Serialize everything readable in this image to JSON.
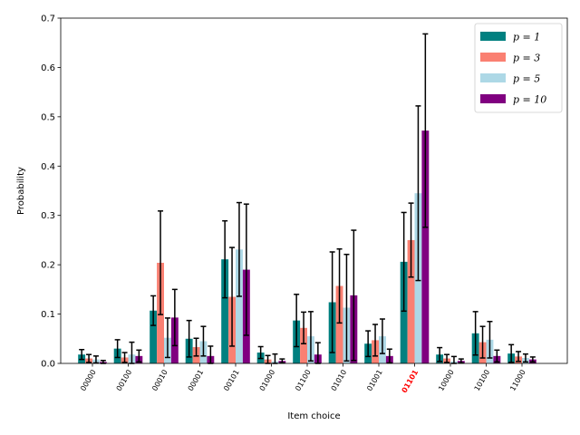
{
  "chart_data": {
    "type": "bar",
    "title": "",
    "xlabel": "Item choice",
    "ylabel": "Probability",
    "ylim": [
      0,
      0.7
    ],
    "yticks": [
      "0.0",
      "0.1",
      "0.2",
      "0.3",
      "0.4",
      "0.5",
      "0.6",
      "0.7"
    ],
    "categories": [
      "00000",
      "00100",
      "00010",
      "00001",
      "00101",
      "01000",
      "01100",
      "01010",
      "01001",
      "01101",
      "10000",
      "10100",
      "11000"
    ],
    "highlight_category": "01101",
    "highlight_color": "#ff0000",
    "grid": false,
    "legend_position": "top-right",
    "series": [
      {
        "name": "p = 1",
        "color": "#008080",
        "values": [
          0.018,
          0.03,
          0.107,
          0.05,
          0.211,
          0.022,
          0.087,
          0.124,
          0.04,
          0.206,
          0.018,
          0.061,
          0.02
        ],
        "errors": [
          0.01,
          0.018,
          0.03,
          0.037,
          0.078,
          0.012,
          0.053,
          0.102,
          0.026,
          0.1,
          0.014,
          0.044,
          0.018
        ]
      },
      {
        "name": "p = 3",
        "color": "#fa8072",
        "values": [
          0.01,
          0.012,
          0.204,
          0.033,
          0.135,
          0.008,
          0.072,
          0.157,
          0.047,
          0.25,
          0.01,
          0.043,
          0.014
        ],
        "errors": [
          0.008,
          0.01,
          0.105,
          0.018,
          0.1,
          0.008,
          0.032,
          0.075,
          0.032,
          0.075,
          0.008,
          0.032,
          0.01
        ]
      },
      {
        "name": "p = 5",
        "color": "#add8e6",
        "values": [
          0.008,
          0.018,
          0.052,
          0.045,
          0.231,
          0.004,
          0.055,
          0.113,
          0.055,
          0.345,
          0.004,
          0.048,
          0.011
        ],
        "errors": [
          0.007,
          0.025,
          0.04,
          0.03,
          0.095,
          0.015,
          0.05,
          0.108,
          0.035,
          0.177,
          0.01,
          0.037,
          0.008
        ]
      },
      {
        "name": "p = 10",
        "color": "#800080",
        "values": [
          0.003,
          0.015,
          0.093,
          0.015,
          0.19,
          0.005,
          0.018,
          0.138,
          0.015,
          0.472,
          0.005,
          0.015,
          0.008
        ],
        "errors": [
          0.003,
          0.012,
          0.057,
          0.02,
          0.133,
          0.004,
          0.024,
          0.132,
          0.014,
          0.196,
          0.004,
          0.012,
          0.005
        ]
      }
    ]
  }
}
